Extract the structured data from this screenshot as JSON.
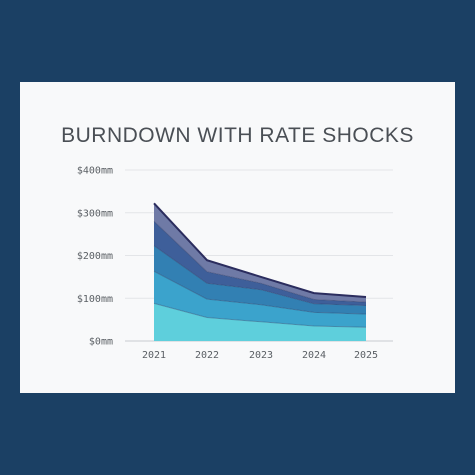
{
  "chart_data": {
    "type": "area",
    "stacked": true,
    "title": "BURNDOWN WITH RATE SHOCKS",
    "xlabel": "",
    "ylabel": "",
    "x": [
      "2021",
      "2022",
      "2023",
      "2024",
      "2025"
    ],
    "ylim": [
      0,
      400
    ],
    "yticks": [
      "$0mm",
      "$100mm",
      "$200mm",
      "$300mm",
      "$400mm"
    ],
    "ytick_values": [
      0,
      100,
      200,
      300,
      400
    ],
    "grid": true,
    "legend": "none",
    "series": [
      {
        "values": [
          88,
          55,
          45,
          35,
          32
        ],
        "color": "#5ecfdc"
      },
      {
        "values": [
          75,
          43,
          40,
          32,
          31
        ],
        "color": "#3ba3cc"
      },
      {
        "values": [
          60,
          37,
          35,
          20,
          20
        ],
        "color": "#3280b3"
      },
      {
        "values": [
          57,
          27,
          15,
          10,
          8
        ],
        "color": "#3e5f9a"
      },
      {
        "values": [
          42,
          27,
          15,
          15,
          12
        ],
        "color": "#6f7aa6"
      }
    ],
    "top_line_color": "#2b2d5e"
  }
}
